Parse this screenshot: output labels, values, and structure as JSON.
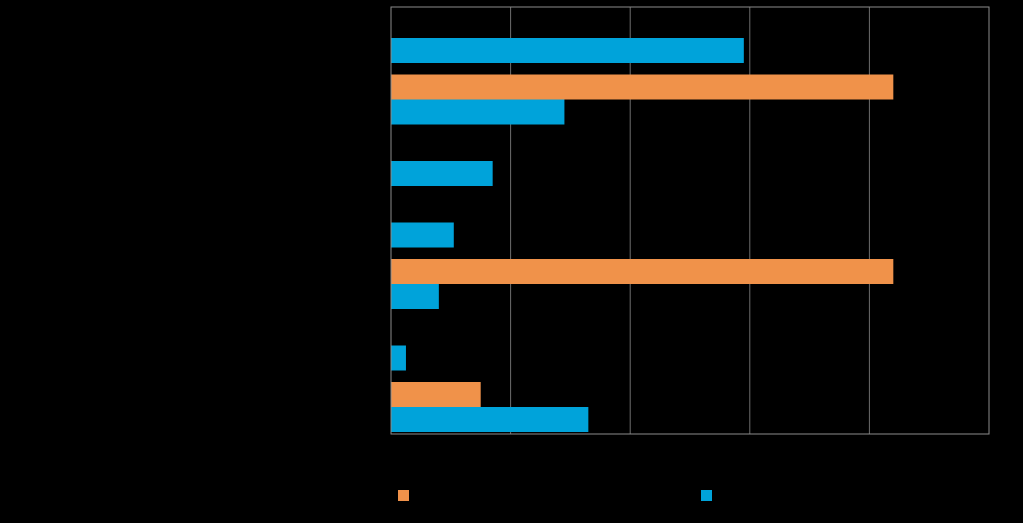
{
  "chart_data": {
    "type": "bar",
    "orientation": "horizontal",
    "title": "",
    "xlabel": "",
    "ylabel": "",
    "categories": [
      "",
      "",
      "",
      "",
      "",
      "",
      ""
    ],
    "series": [
      {
        "name": "",
        "color": "#F0924A",
        "values": [
          null,
          84,
          null,
          null,
          84,
          null,
          15
        ]
      },
      {
        "name": "",
        "color": "#00A3DA",
        "values": [
          59,
          29,
          17,
          10.5,
          8,
          2.5,
          33
        ]
      }
    ],
    "xlim": [
      0,
      100
    ],
    "x_gridlines": [
      20,
      40,
      60,
      80
    ],
    "grid": true,
    "legend": {
      "position": "bottom"
    }
  }
}
